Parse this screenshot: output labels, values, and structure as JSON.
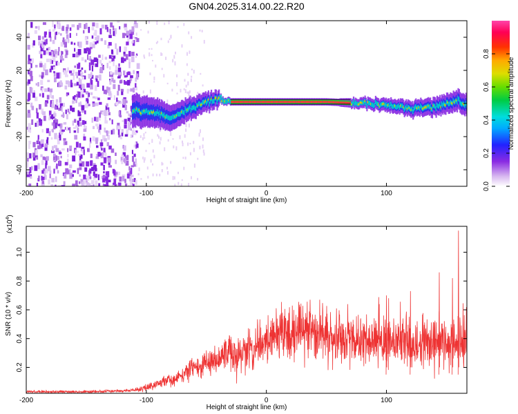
{
  "title": "GN04.2025.314.00.22.R20",
  "colors": {
    "snr_line": "#ee3333",
    "axis": "#000000",
    "background": "#ffffff"
  },
  "chart_data": [
    {
      "type": "heatmap",
      "xlabel": "Height of straight line (km)",
      "ylabel": "Frequency (Hz)",
      "xlim": [
        -200,
        167
      ],
      "ylim": [
        -50,
        50
      ],
      "xticks": [
        -200,
        -100,
        0,
        100
      ],
      "yticks": [
        -40,
        -20,
        0,
        20,
        40
      ],
      "colorbar": {
        "label": "Normalized spectral amplitude",
        "range": [
          0.0,
          1.0
        ],
        "ticks": [
          "0.0",
          "0.2",
          "0.4",
          "0.6",
          "0.8"
        ],
        "tick_values": [
          0.0,
          0.2,
          0.4,
          0.6,
          0.8
        ]
      },
      "features": {
        "noise_region_km": [
          -200,
          -112
        ],
        "signal_center_hz": [
          [
            -110,
            -4
          ],
          [
            -90,
            -6
          ],
          [
            -80,
            -9
          ],
          [
            -70,
            -5
          ],
          [
            -60,
            -2
          ],
          [
            -50,
            1
          ],
          [
            -40,
            3
          ],
          [
            -30,
            1
          ],
          [
            0,
            1
          ],
          [
            50,
            1
          ],
          [
            80,
            0
          ],
          [
            100,
            -1
          ],
          [
            120,
            -3
          ],
          [
            140,
            -2
          ],
          [
            150,
            0
          ],
          [
            160,
            2
          ],
          [
            167,
            -2
          ]
        ]
      }
    },
    {
      "type": "line",
      "xlabel": "Height of straight line (km)",
      "ylabel": "SNR (10 * v/v)",
      "multiplier": "(x10",
      "multiplier_exp": "4",
      "xlim": [
        -200,
        167
      ],
      "ylim": [
        0.02,
        1.18
      ],
      "xticks": [
        -200,
        -100,
        0,
        100
      ],
      "yticks": [
        0.2,
        0.4,
        0.6,
        0.8,
        1.0
      ],
      "ytick_labels": [
        "0.2",
        "0.4",
        "0.6",
        "0.8",
        "1.0"
      ],
      "series": [
        {
          "envelope_x": [
            -200,
            -150,
            -110,
            -100,
            -90,
            -80,
            -70,
            -60,
            -50,
            -40,
            -35,
            -30,
            -20,
            -10,
            0,
            10,
            20,
            30,
            40,
            50,
            60,
            70,
            80,
            90,
            100,
            110,
            120,
            130,
            140,
            150,
            160,
            167
          ],
          "envelope_y": [
            0.03,
            0.03,
            0.04,
            0.06,
            0.09,
            0.11,
            0.15,
            0.2,
            0.23,
            0.25,
            0.27,
            0.28,
            0.31,
            0.34,
            0.39,
            0.42,
            0.45,
            0.45,
            0.44,
            0.42,
            0.4,
            0.4,
            0.39,
            0.38,
            0.38,
            0.38,
            0.37,
            0.37,
            0.38,
            0.38,
            0.39,
            0.36
          ],
          "peaks": [
            [
              160,
              1.15
            ],
            [
              144,
              0.86
            ],
            [
              155,
              0.82
            ],
            [
              120,
              0.73
            ],
            [
              100,
              0.7
            ]
          ]
        }
      ]
    }
  ]
}
